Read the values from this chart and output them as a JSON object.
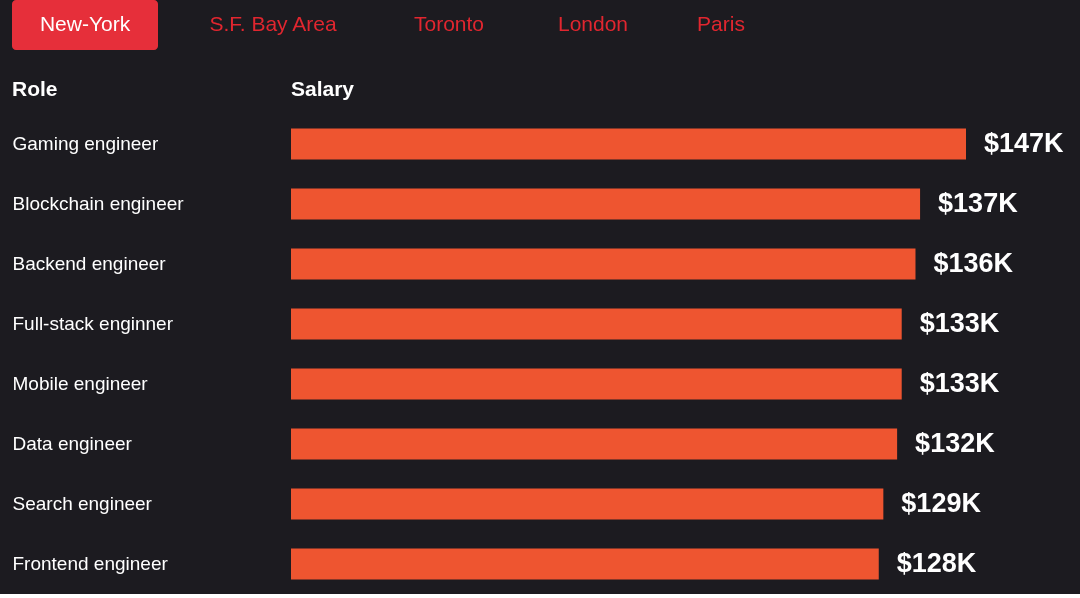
{
  "chart_data": {
    "type": "bar",
    "orientation": "horizontal",
    "xlabel": "Salary",
    "ylabel": "Role",
    "categories": [
      "Gaming engineer",
      "Blockchain engineer",
      "Backend engineer",
      "Full-stack enginner",
      "Mobile engineer",
      "Data engineer",
      "Search engineer",
      "Frontend engineer"
    ],
    "values": [
      147,
      137,
      136,
      133,
      133,
      132,
      129,
      128
    ],
    "value_labels": [
      "$147K",
      "$137K",
      "$136K",
      "$133K",
      "$133K",
      "$132K",
      "$129K",
      "$128K"
    ],
    "color": "#ee5530",
    "annotations": [
      "New-York",
      "S.F. Bay Area",
      "Toronto",
      "London",
      "Paris"
    ],
    "grid": false
  }
}
